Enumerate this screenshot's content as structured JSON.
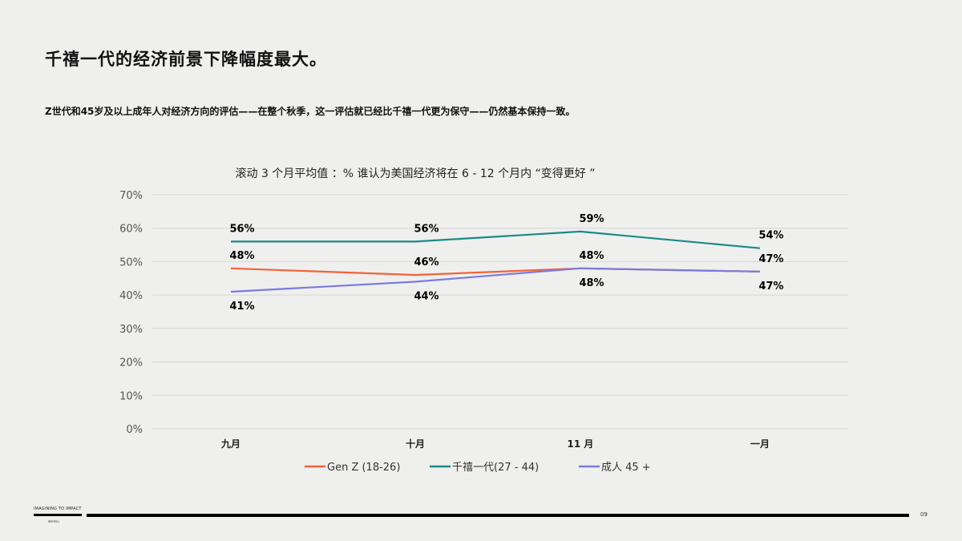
{
  "page": {
    "title": "千禧一代的经济前景下降幅度最大。",
    "subtitle": "Z世代和45岁及以上成年人对经济方向的评估——在整个秋季，这一评估就已经比千禧一代更为保守——仍然基本保持一致。",
    "footer_logo": "IMAGINING TO IMPACT",
    "footer_sub": "dentsu",
    "page_number": "09"
  },
  "chart_data": {
    "type": "line",
    "title": "滚动 3 个月平均值 ：% 谁认为美国经济将在 6 - 12 个月内 “变得更好 ”",
    "categories": [
      "九月",
      "十月",
      "11 月",
      "一月"
    ],
    "y_ticks": [
      "0%",
      "10%",
      "20%",
      "30%",
      "40%",
      "50%",
      "60%",
      "70%"
    ],
    "ylim": [
      0,
      70
    ],
    "grid": true,
    "legend_position": "bottom",
    "series": [
      {
        "name": "Gen Z (18-26)",
        "color": "#f4623a",
        "values": [
          48,
          46,
          48,
          47
        ],
        "label_pos": [
          "above",
          "above",
          "above",
          "above"
        ]
      },
      {
        "name": "千禧一代(27 - 44)",
        "color": "#1b8a84",
        "values": [
          56,
          56,
          59,
          54
        ],
        "label_pos": [
          "above",
          "above",
          "above",
          "above"
        ]
      },
      {
        "name": "成人 45 +",
        "color": "#7b7be0",
        "values": [
          41,
          44,
          48,
          47
        ],
        "label_pos": [
          "below",
          "below",
          "below",
          "below"
        ]
      }
    ]
  }
}
